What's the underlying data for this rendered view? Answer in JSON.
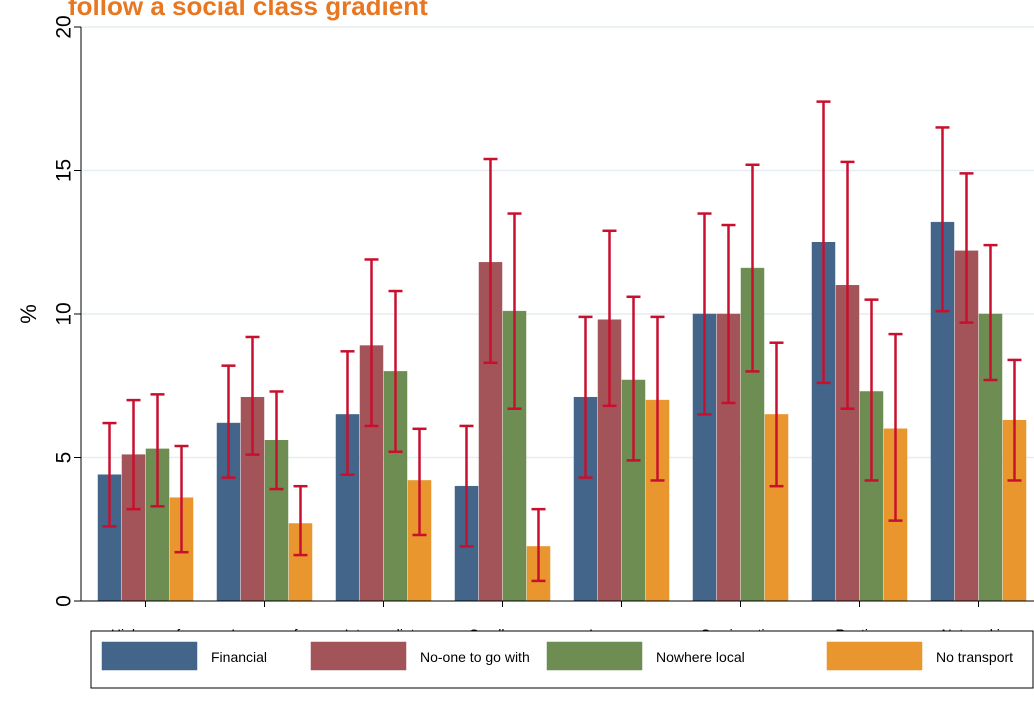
{
  "title": "follow a social class gradient",
  "chart_data": {
    "type": "bar",
    "title": "follow a social class gradient",
    "xlabel": "",
    "ylabel": "%",
    "ylim": [
      0,
      20
    ],
    "yticks": [
      0,
      5,
      10,
      15,
      20
    ],
    "grid": true,
    "legend_position": "bottom",
    "error_bars": true,
    "categories": [
      "Higher prof",
      "Lower prof",
      "Intermediate",
      "Small emp",
      "Lower sup",
      "Semi-routine",
      "Routine",
      "Not working"
    ],
    "series": [
      {
        "name": "Financial",
        "color": "#426589",
        "values": [
          4.4,
          6.2,
          6.5,
          4.0,
          7.1,
          10.0,
          12.5,
          13.2
        ],
        "lower": [
          2.6,
          4.3,
          4.4,
          1.9,
          4.3,
          6.5,
          7.6,
          10.1
        ],
        "upper": [
          6.2,
          8.2,
          8.7,
          6.1,
          9.9,
          13.5,
          17.4,
          16.5
        ]
      },
      {
        "name": "No-one to go with",
        "color": "#a35459",
        "values": [
          5.1,
          7.1,
          8.9,
          11.8,
          9.8,
          10.0,
          11.0,
          12.2
        ],
        "lower": [
          3.2,
          5.1,
          6.1,
          8.3,
          6.8,
          6.9,
          6.7,
          9.7
        ],
        "upper": [
          7.0,
          9.2,
          11.9,
          15.4,
          12.9,
          13.1,
          15.3,
          14.9
        ]
      },
      {
        "name": "Nowhere local",
        "color": "#6d8d52",
        "values": [
          5.3,
          5.6,
          8.0,
          10.1,
          7.7,
          11.6,
          7.3,
          10.0
        ],
        "lower": [
          3.3,
          3.9,
          5.2,
          6.7,
          4.9,
          8.0,
          4.2,
          7.7
        ],
        "upper": [
          7.2,
          7.3,
          10.8,
          13.5,
          10.6,
          15.2,
          10.5,
          12.4
        ]
      },
      {
        "name": "No transport",
        "color": "#e8962d",
        "values": [
          3.6,
          2.7,
          4.2,
          1.9,
          7.0,
          6.5,
          6.0,
          6.3
        ],
        "lower": [
          1.7,
          1.6,
          2.3,
          0.7,
          4.2,
          4.0,
          2.8,
          4.2
        ],
        "upper": [
          5.4,
          4.0,
          6.0,
          3.2,
          9.9,
          9.0,
          9.3,
          8.4
        ]
      }
    ],
    "error_bar_color": "#c8102e",
    "grid_color": "#e4eef3"
  }
}
